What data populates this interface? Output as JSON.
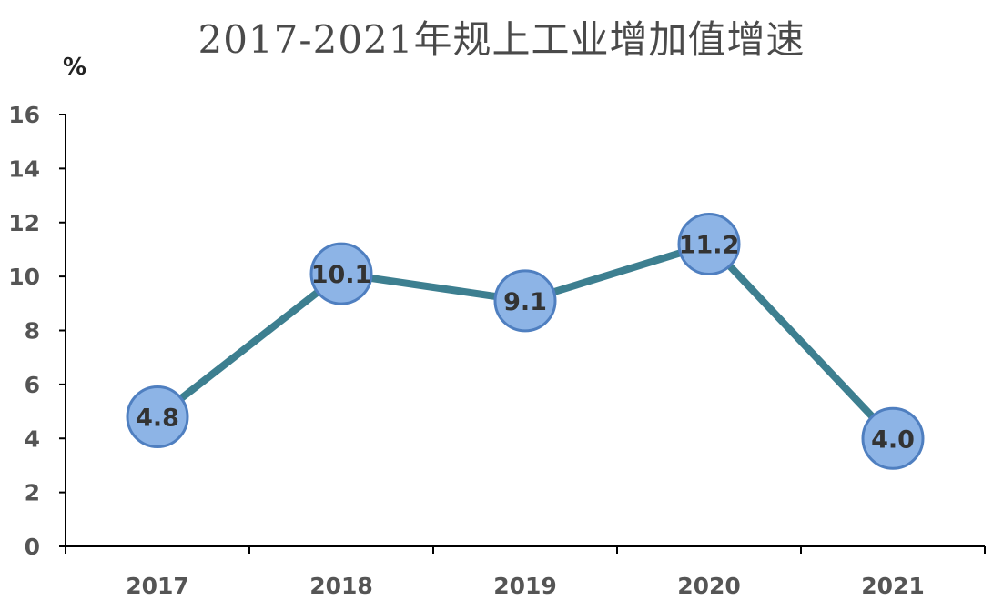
{
  "chart_data": {
    "type": "line",
    "title": "2017-2021年规上工业增加值增速",
    "ylabel": "%",
    "xlabel": "",
    "categories": [
      "2017",
      "2018",
      "2019",
      "2020",
      "2021"
    ],
    "series": [
      {
        "values": [
          4.8,
          10.1,
          9.1,
          11.2,
          4.0
        ],
        "data_labels": [
          "4.8",
          "10.1",
          "9.1",
          "11.2",
          "4.0"
        ]
      }
    ],
    "ylim": [
      0,
      16
    ],
    "yticks": [
      0,
      2,
      4,
      6,
      8,
      10,
      12,
      14,
      16
    ],
    "grid": false,
    "legend": "none",
    "colors": {
      "line": "#3d7f90",
      "marker_fill": "#8db4e6",
      "marker_stroke": "#4f7fc0",
      "axis": "#000000"
    }
  }
}
